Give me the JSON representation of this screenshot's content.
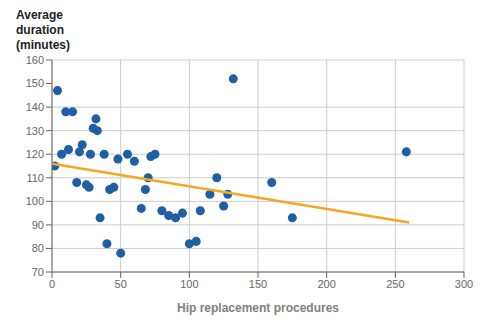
{
  "chart_data": {
    "type": "scatter",
    "xlabel": "Hip replacement procedures",
    "ylabel": [
      "Average",
      "duration",
      "(minutes)"
    ],
    "xlim": [
      0,
      300
    ],
    "ylim": [
      70,
      160
    ],
    "xticks": [
      0,
      50,
      100,
      150,
      200,
      250,
      300
    ],
    "yticks": [
      70,
      80,
      90,
      100,
      110,
      120,
      130,
      140,
      150,
      160
    ],
    "grid": true,
    "series": [
      {
        "type": "scatter",
        "color": "#1f5fa6",
        "x": [
          2,
          4,
          7,
          10,
          12,
          15,
          18,
          20,
          22,
          25,
          27,
          28,
          30,
          32,
          33,
          35,
          38,
          40,
          42,
          45,
          48,
          50,
          55,
          60,
          65,
          68,
          70,
          72,
          75,
          80,
          85,
          90,
          95,
          100,
          105,
          108,
          115,
          120,
          125,
          128,
          132,
          160,
          175,
          258
        ],
        "values": [
          115,
          147,
          120,
          138,
          122,
          138,
          108,
          121,
          124,
          107,
          106,
          120,
          131,
          135,
          130,
          93,
          120,
          82,
          105,
          106,
          118,
          78,
          120,
          117,
          97,
          105,
          110,
          119,
          120,
          96,
          94,
          93,
          95,
          82,
          83,
          96,
          103,
          110,
          98,
          103,
          152,
          108,
          93,
          121
        ]
      },
      {
        "type": "line",
        "color": "#f5a623",
        "x": [
          0,
          260
        ],
        "values": [
          116,
          91
        ]
      }
    ]
  }
}
